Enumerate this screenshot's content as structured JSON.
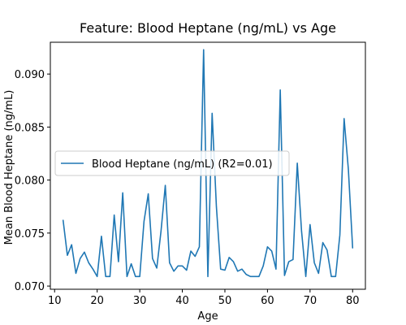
{
  "chart_data": {
    "type": "line",
    "title": "Feature: Blood Heptane (ng/mL) vs Age",
    "xlabel": "Age",
    "ylabel": "Mean Blood Heptane (ng/mL)",
    "xlim": [
      9,
      83
    ],
    "ylim": [
      0.0697,
      0.093
    ],
    "xticks": [
      10,
      20,
      30,
      40,
      50,
      60,
      70,
      80
    ],
    "xtick_labels": [
      "10",
      "20",
      "30",
      "40",
      "50",
      "60",
      "70",
      "80"
    ],
    "yticks": [
      0.07,
      0.075,
      0.08,
      0.085,
      0.09
    ],
    "ytick_labels": [
      "0.070",
      "0.075",
      "0.080",
      "0.085",
      "0.090"
    ],
    "grid": false,
    "legend_position": "center-left",
    "series": [
      {
        "name": "Blood Heptane (ng/mL) (R2=0.01)",
        "color": "#1f77b4",
        "x": [
          12,
          13,
          14,
          15,
          16,
          17,
          18,
          19,
          20,
          21,
          22,
          23,
          24,
          25,
          26,
          27,
          28,
          29,
          30,
          31,
          32,
          33,
          34,
          35,
          36,
          37,
          38,
          39,
          40,
          41,
          42,
          43,
          44,
          45,
          46,
          47,
          48,
          49,
          50,
          51,
          52,
          53,
          54,
          55,
          56,
          57,
          58,
          59,
          60,
          61,
          62,
          63,
          64,
          65,
          66,
          67,
          68,
          69,
          70,
          71,
          72,
          73,
          74,
          75,
          76,
          77,
          78,
          79,
          80
        ],
        "y": [
          0.0762,
          0.0729,
          0.0739,
          0.0712,
          0.0726,
          0.0732,
          0.0722,
          0.0716,
          0.0709,
          0.0747,
          0.0709,
          0.0709,
          0.0767,
          0.0723,
          0.0788,
          0.0709,
          0.0721,
          0.0709,
          0.0709,
          0.0761,
          0.0787,
          0.0726,
          0.0717,
          0.0752,
          0.0795,
          0.0722,
          0.0714,
          0.0719,
          0.0719,
          0.0715,
          0.0733,
          0.0728,
          0.0737,
          0.0923,
          0.0709,
          0.0863,
          0.0775,
          0.0716,
          0.0715,
          0.0727,
          0.0723,
          0.0714,
          0.0716,
          0.0711,
          0.0709,
          0.0709,
          0.0709,
          0.0719,
          0.0737,
          0.0733,
          0.0716,
          0.0885,
          0.071,
          0.0723,
          0.0725,
          0.0816,
          0.0752,
          0.0709,
          0.0758,
          0.0722,
          0.0712,
          0.0741,
          0.0734,
          0.0709,
          0.0709,
          0.0748,
          0.0858,
          0.081,
          0.0736
        ]
      }
    ]
  }
}
